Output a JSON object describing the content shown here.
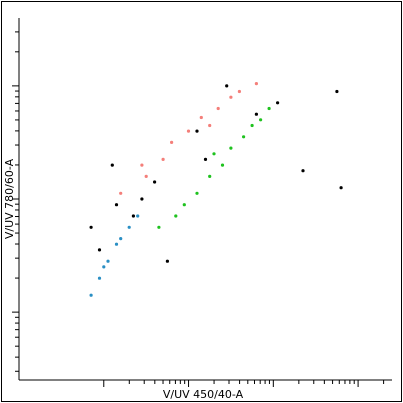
{
  "chart_data": {
    "type": "scatter",
    "xlabel": "V/UV 450/40-A",
    "ylabel": "V/UV 780/60-A",
    "xscale": "log",
    "yscale": "log",
    "grid": false,
    "legend": "none",
    "series": [
      {
        "color": "#000000",
        "points": [
          [
            0.95,
            1.55
          ],
          [
            1.35,
            1.85
          ],
          [
            1.1,
            2.3
          ],
          [
            2.1,
            2.6
          ],
          [
            2.8,
            2.75
          ],
          [
            1.6,
            2.15
          ],
          [
            3.35,
            2.25
          ],
          [
            2.45,
            3.0
          ],
          [
            3.75,
            2.95
          ],
          [
            1.15,
            1.95
          ],
          [
            0.85,
            1.75
          ],
          [
            1.75,
            1.45
          ],
          [
            2.2,
            2.35
          ],
          [
            3.05,
            2.85
          ],
          [
            1.45,
            2.0
          ],
          [
            3.8,
            2.1
          ]
        ]
      },
      {
        "color": "#f47f7a",
        "points": [
          [
            1.2,
            2.05
          ],
          [
            1.45,
            2.3
          ],
          [
            1.8,
            2.5
          ],
          [
            2.15,
            2.72
          ],
          [
            2.5,
            2.9
          ],
          [
            2.8,
            3.02
          ],
          [
            1.5,
            2.2
          ],
          [
            2.0,
            2.6
          ],
          [
            2.35,
            2.8
          ],
          [
            2.6,
            2.95
          ],
          [
            1.7,
            2.35
          ],
          [
            2.25,
            2.65
          ]
        ]
      },
      {
        "color": "#1fc21f",
        "points": [
          [
            1.65,
            1.75
          ],
          [
            1.95,
            1.95
          ],
          [
            2.25,
            2.2
          ],
          [
            2.5,
            2.45
          ],
          [
            2.75,
            2.65
          ],
          [
            2.95,
            2.8
          ],
          [
            2.1,
            2.05
          ],
          [
            2.4,
            2.3
          ],
          [
            2.65,
            2.55
          ],
          [
            1.85,
            1.85
          ],
          [
            2.3,
            2.4
          ],
          [
            2.85,
            2.7
          ]
        ]
      },
      {
        "color": "#2a8fc4",
        "points": [
          [
            0.85,
            1.15
          ],
          [
            0.95,
            1.3
          ],
          [
            1.05,
            1.45
          ],
          [
            1.15,
            1.6
          ],
          [
            1.3,
            1.75
          ],
          [
            1.4,
            1.85
          ],
          [
            1.0,
            1.4
          ],
          [
            1.2,
            1.65
          ]
        ]
      }
    ]
  }
}
